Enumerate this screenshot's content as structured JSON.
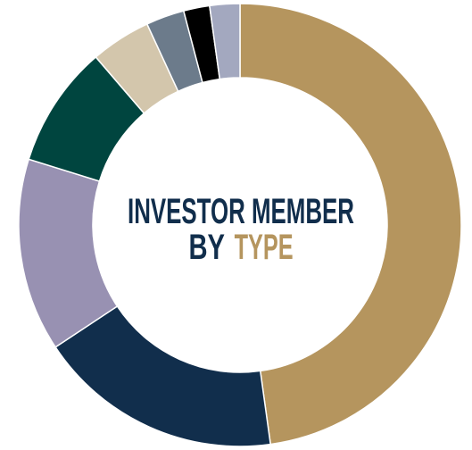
{
  "chart_data": {
    "type": "donut",
    "title": [
      "INVESTOR MEMBER",
      "BY",
      "TYPE"
    ],
    "values": [
      47.8,
      17.9,
      14.1,
      8.9,
      4.4,
      2.8,
      1.9,
      2.2
    ],
    "colors": [
      "#b5955e",
      "#112e4c",
      "#9891b2",
      "#00453f",
      "#d3c6ac",
      "#6c7b8b",
      "#000000",
      "#a3a8bf"
    ],
    "highlight_color": "#b5955e"
  }
}
